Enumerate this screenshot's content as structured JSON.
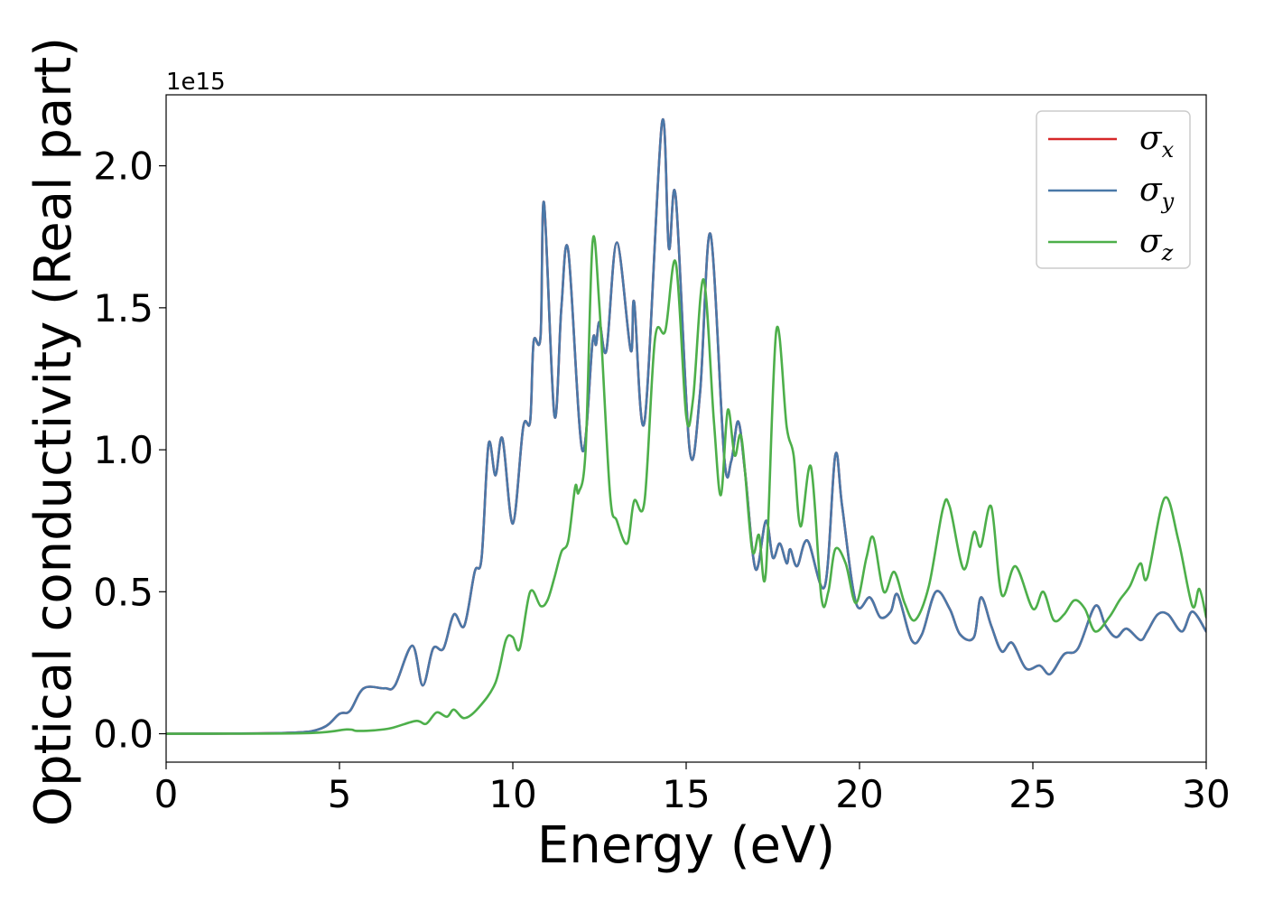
{
  "chart_data": {
    "type": "line",
    "xlabel": "Energy (eV)",
    "ylabel": "Optical conductivity (Real part)",
    "y_offset_label": "1e15",
    "xlim": [
      0,
      30
    ],
    "ylim": [
      -0.1,
      2.25
    ],
    "x_ticks": [
      0,
      5,
      10,
      15,
      20,
      25,
      30
    ],
    "x_tick_labels": [
      "0",
      "5",
      "10",
      "15",
      "20",
      "25",
      "30"
    ],
    "y_ticks": [
      0.0,
      0.5,
      1.0,
      1.5,
      2.0
    ],
    "y_tick_labels": [
      "0.0",
      "0.5",
      "1.0",
      "1.5",
      "2.0"
    ],
    "grid": false,
    "legend_position": "top-right",
    "series": [
      {
        "name": "σx",
        "symbol": "σ",
        "subscript": "x",
        "color": "#d62728",
        "points": [
          [
            0,
            0
          ],
          [
            3.5,
            0.003
          ],
          [
            4.5,
            0.02
          ],
          [
            5.0,
            0.07
          ],
          [
            5.3,
            0.08
          ],
          [
            5.7,
            0.16
          ],
          [
            6.3,
            0.16
          ],
          [
            6.6,
            0.17
          ],
          [
            7.1,
            0.31
          ],
          [
            7.4,
            0.17
          ],
          [
            7.7,
            0.3
          ],
          [
            8.0,
            0.3
          ],
          [
            8.3,
            0.42
          ],
          [
            8.6,
            0.38
          ],
          [
            8.9,
            0.57
          ],
          [
            9.1,
            0.62
          ],
          [
            9.3,
            1.02
          ],
          [
            9.5,
            0.91
          ],
          [
            9.7,
            1.04
          ],
          [
            10.0,
            0.74
          ],
          [
            10.3,
            1.08
          ],
          [
            10.5,
            1.1
          ],
          [
            10.6,
            1.38
          ],
          [
            10.8,
            1.4
          ],
          [
            10.9,
            1.87
          ],
          [
            11.2,
            1.12
          ],
          [
            11.4,
            1.5
          ],
          [
            11.6,
            1.7
          ],
          [
            12.0,
            1.0
          ],
          [
            12.3,
            1.38
          ],
          [
            12.4,
            1.37
          ],
          [
            12.5,
            1.45
          ],
          [
            12.7,
            1.35
          ],
          [
            13.0,
            1.73
          ],
          [
            13.4,
            1.35
          ],
          [
            13.5,
            1.52
          ],
          [
            13.8,
            1.1
          ],
          [
            14.3,
            2.15
          ],
          [
            14.5,
            1.71
          ],
          [
            14.7,
            1.89
          ],
          [
            15.1,
            1.0
          ],
          [
            15.4,
            1.2
          ],
          [
            15.7,
            1.76
          ],
          [
            16.1,
            0.97
          ],
          [
            16.3,
            0.96
          ],
          [
            16.5,
            1.1
          ],
          [
            16.7,
            0.92
          ],
          [
            17.0,
            0.58
          ],
          [
            17.3,
            0.75
          ],
          [
            17.5,
            0.62
          ],
          [
            17.7,
            0.67
          ],
          [
            17.9,
            0.6
          ],
          [
            18.0,
            0.65
          ],
          [
            18.2,
            0.59
          ],
          [
            18.5,
            0.68
          ],
          [
            19.0,
            0.52
          ],
          [
            19.3,
            0.98
          ],
          [
            19.5,
            0.8
          ],
          [
            19.9,
            0.46
          ],
          [
            20.3,
            0.48
          ],
          [
            20.6,
            0.41
          ],
          [
            20.9,
            0.43
          ],
          [
            21.1,
            0.49
          ],
          [
            21.5,
            0.33
          ],
          [
            21.8,
            0.35
          ],
          [
            22.2,
            0.5
          ],
          [
            22.6,
            0.44
          ],
          [
            22.9,
            0.35
          ],
          [
            23.3,
            0.34
          ],
          [
            23.5,
            0.48
          ],
          [
            23.8,
            0.38
          ],
          [
            24.1,
            0.29
          ],
          [
            24.4,
            0.32
          ],
          [
            24.8,
            0.23
          ],
          [
            25.2,
            0.24
          ],
          [
            25.5,
            0.21
          ],
          [
            25.9,
            0.28
          ],
          [
            26.3,
            0.3
          ],
          [
            26.8,
            0.45
          ],
          [
            27.1,
            0.38
          ],
          [
            27.4,
            0.34
          ],
          [
            27.7,
            0.37
          ],
          [
            28.1,
            0.33
          ],
          [
            28.3,
            0.36
          ],
          [
            28.6,
            0.42
          ],
          [
            28.9,
            0.42
          ],
          [
            29.3,
            0.36
          ],
          [
            29.6,
            0.43
          ],
          [
            30.0,
            0.36
          ]
        ]
      },
      {
        "name": "σy",
        "symbol": "σ",
        "subscript": "y",
        "color": "#4a78a8",
        "points": [
          [
            0,
            0
          ],
          [
            3.5,
            0.003
          ],
          [
            4.5,
            0.02
          ],
          [
            5.0,
            0.07
          ],
          [
            5.3,
            0.08
          ],
          [
            5.7,
            0.16
          ],
          [
            6.3,
            0.16
          ],
          [
            6.6,
            0.17
          ],
          [
            7.1,
            0.31
          ],
          [
            7.4,
            0.17
          ],
          [
            7.7,
            0.3
          ],
          [
            8.0,
            0.3
          ],
          [
            8.3,
            0.42
          ],
          [
            8.6,
            0.38
          ],
          [
            8.9,
            0.57
          ],
          [
            9.1,
            0.62
          ],
          [
            9.3,
            1.02
          ],
          [
            9.5,
            0.91
          ],
          [
            9.7,
            1.04
          ],
          [
            10.0,
            0.74
          ],
          [
            10.3,
            1.08
          ],
          [
            10.5,
            1.1
          ],
          [
            10.6,
            1.38
          ],
          [
            10.8,
            1.4
          ],
          [
            10.9,
            1.87
          ],
          [
            11.2,
            1.12
          ],
          [
            11.4,
            1.5
          ],
          [
            11.6,
            1.7
          ],
          [
            12.0,
            1.0
          ],
          [
            12.3,
            1.38
          ],
          [
            12.4,
            1.37
          ],
          [
            12.5,
            1.45
          ],
          [
            12.7,
            1.35
          ],
          [
            13.0,
            1.73
          ],
          [
            13.4,
            1.35
          ],
          [
            13.5,
            1.52
          ],
          [
            13.8,
            1.1
          ],
          [
            14.3,
            2.15
          ],
          [
            14.5,
            1.71
          ],
          [
            14.7,
            1.89
          ],
          [
            15.1,
            1.0
          ],
          [
            15.4,
            1.2
          ],
          [
            15.7,
            1.76
          ],
          [
            16.1,
            0.97
          ],
          [
            16.3,
            0.96
          ],
          [
            16.5,
            1.1
          ],
          [
            16.7,
            0.92
          ],
          [
            17.0,
            0.58
          ],
          [
            17.3,
            0.75
          ],
          [
            17.5,
            0.62
          ],
          [
            17.7,
            0.67
          ],
          [
            17.9,
            0.6
          ],
          [
            18.0,
            0.65
          ],
          [
            18.2,
            0.59
          ],
          [
            18.5,
            0.68
          ],
          [
            19.0,
            0.52
          ],
          [
            19.3,
            0.98
          ],
          [
            19.5,
            0.8
          ],
          [
            19.9,
            0.46
          ],
          [
            20.3,
            0.48
          ],
          [
            20.6,
            0.41
          ],
          [
            20.9,
            0.43
          ],
          [
            21.1,
            0.49
          ],
          [
            21.5,
            0.33
          ],
          [
            21.8,
            0.35
          ],
          [
            22.2,
            0.5
          ],
          [
            22.6,
            0.44
          ],
          [
            22.9,
            0.35
          ],
          [
            23.3,
            0.34
          ],
          [
            23.5,
            0.48
          ],
          [
            23.8,
            0.38
          ],
          [
            24.1,
            0.29
          ],
          [
            24.4,
            0.32
          ],
          [
            24.8,
            0.23
          ],
          [
            25.2,
            0.24
          ],
          [
            25.5,
            0.21
          ],
          [
            25.9,
            0.28
          ],
          [
            26.3,
            0.3
          ],
          [
            26.8,
            0.45
          ],
          [
            27.1,
            0.38
          ],
          [
            27.4,
            0.34
          ],
          [
            27.7,
            0.37
          ],
          [
            28.1,
            0.33
          ],
          [
            28.3,
            0.36
          ],
          [
            28.6,
            0.42
          ],
          [
            28.9,
            0.42
          ],
          [
            29.3,
            0.36
          ],
          [
            29.6,
            0.43
          ],
          [
            30.0,
            0.36
          ]
        ]
      },
      {
        "name": "σz",
        "symbol": "σ",
        "subscript": "z",
        "color": "#4daf4a",
        "points": [
          [
            0,
            0
          ],
          [
            4.0,
            0.002
          ],
          [
            5.2,
            0.015
          ],
          [
            5.5,
            0.01
          ],
          [
            6.0,
            0.012
          ],
          [
            6.5,
            0.02
          ],
          [
            7.2,
            0.045
          ],
          [
            7.5,
            0.035
          ],
          [
            7.8,
            0.075
          ],
          [
            8.1,
            0.06
          ],
          [
            8.3,
            0.085
          ],
          [
            8.6,
            0.055
          ],
          [
            9.0,
            0.09
          ],
          [
            9.5,
            0.18
          ],
          [
            9.8,
            0.33
          ],
          [
            10.0,
            0.34
          ],
          [
            10.2,
            0.3
          ],
          [
            10.5,
            0.5
          ],
          [
            10.8,
            0.45
          ],
          [
            11.0,
            0.47
          ],
          [
            11.2,
            0.55
          ],
          [
            11.4,
            0.64
          ],
          [
            11.6,
            0.68
          ],
          [
            11.8,
            0.87
          ],
          [
            11.9,
            0.85
          ],
          [
            12.1,
            1.0
          ],
          [
            12.3,
            1.73
          ],
          [
            12.5,
            1.5
          ],
          [
            12.8,
            0.85
          ],
          [
            13.0,
            0.75
          ],
          [
            13.3,
            0.67
          ],
          [
            13.5,
            0.82
          ],
          [
            13.8,
            0.82
          ],
          [
            14.1,
            1.39
          ],
          [
            14.4,
            1.42
          ],
          [
            14.7,
            1.66
          ],
          [
            15.0,
            1.12
          ],
          [
            15.2,
            1.18
          ],
          [
            15.5,
            1.6
          ],
          [
            15.8,
            1.1
          ],
          [
            16.0,
            0.84
          ],
          [
            16.2,
            1.14
          ],
          [
            16.4,
            0.98
          ],
          [
            16.6,
            1.04
          ],
          [
            16.9,
            0.65
          ],
          [
            17.1,
            0.7
          ],
          [
            17.3,
            0.57
          ],
          [
            17.6,
            1.42
          ],
          [
            17.9,
            1.08
          ],
          [
            18.1,
            0.98
          ],
          [
            18.3,
            0.73
          ],
          [
            18.6,
            0.94
          ],
          [
            18.9,
            0.48
          ],
          [
            19.1,
            0.5
          ],
          [
            19.3,
            0.65
          ],
          [
            19.6,
            0.6
          ],
          [
            19.9,
            0.46
          ],
          [
            20.2,
            0.62
          ],
          [
            20.4,
            0.69
          ],
          [
            20.7,
            0.5
          ],
          [
            21.0,
            0.57
          ],
          [
            21.3,
            0.46
          ],
          [
            21.6,
            0.4
          ],
          [
            22.0,
            0.52
          ],
          [
            22.4,
            0.79
          ],
          [
            22.6,
            0.8
          ],
          [
            23.0,
            0.58
          ],
          [
            23.3,
            0.71
          ],
          [
            23.5,
            0.66
          ],
          [
            23.8,
            0.8
          ],
          [
            24.1,
            0.49
          ],
          [
            24.5,
            0.59
          ],
          [
            25.0,
            0.44
          ],
          [
            25.3,
            0.5
          ],
          [
            25.6,
            0.4
          ],
          [
            25.9,
            0.42
          ],
          [
            26.2,
            0.47
          ],
          [
            26.5,
            0.44
          ],
          [
            26.8,
            0.36
          ],
          [
            27.2,
            0.41
          ],
          [
            27.5,
            0.47
          ],
          [
            27.8,
            0.52
          ],
          [
            28.1,
            0.6
          ],
          [
            28.3,
            0.55
          ],
          [
            28.8,
            0.83
          ],
          [
            29.2,
            0.68
          ],
          [
            29.6,
            0.45
          ],
          [
            29.8,
            0.51
          ],
          [
            30.0,
            0.41
          ]
        ]
      }
    ]
  }
}
